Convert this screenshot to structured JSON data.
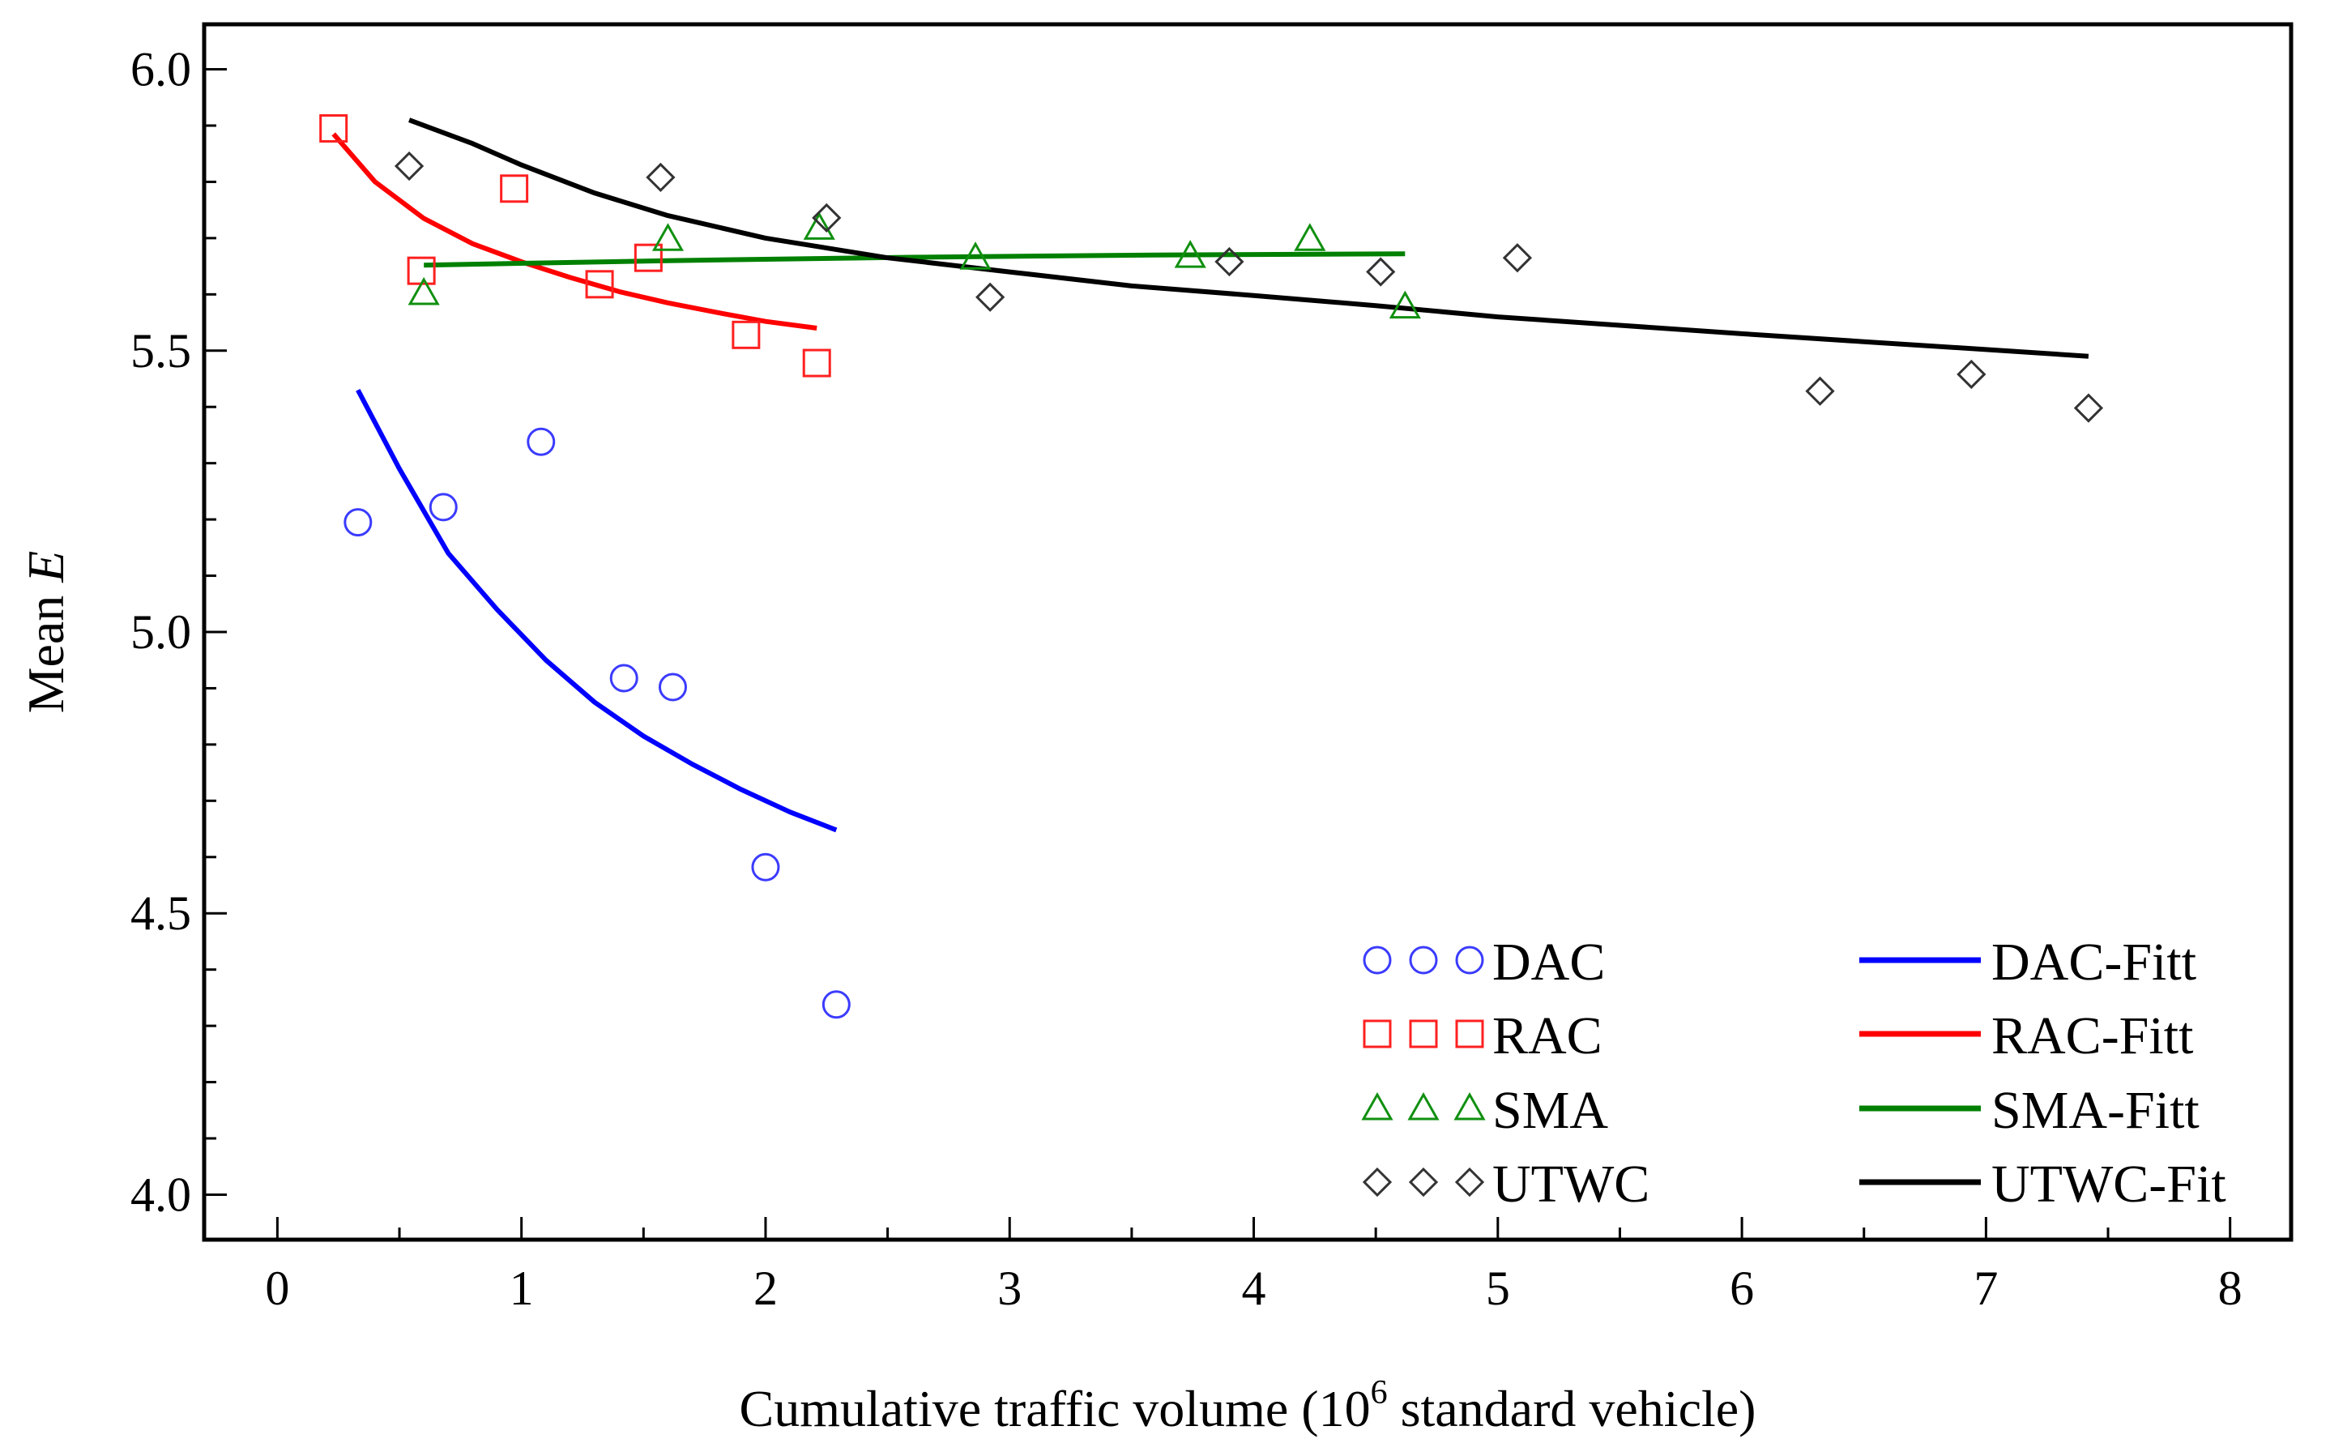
{
  "chart_data": {
    "type": "scatter",
    "xlabel": "Cumulative traffic volume (10",
    "xlabel_sup": "6",
    "xlabel_suffix": " standard vehicle)",
    "ylabel": "Mean ",
    "ylabel_italic": "E",
    "xlim": [
      -0.3,
      8.25
    ],
    "ylim": [
      3.92,
      6.08
    ],
    "x_ticks": [
      0,
      1,
      2,
      3,
      4,
      5,
      6,
      7,
      8
    ],
    "x_tick_labels": [
      "0",
      "1",
      "2",
      "3",
      "4",
      "5",
      "6",
      "7",
      "8"
    ],
    "y_ticks": [
      4.0,
      4.5,
      5.0,
      5.5,
      6.0
    ],
    "y_tick_labels": [
      "4.0",
      "4.5",
      "5.0",
      "5.5",
      "6.0"
    ],
    "legend_position": "bottom-right",
    "series": [
      {
        "name": "DAC",
        "marker": "circle",
        "color": "#3b3bff",
        "points": [
          [
            0.33,
            5.195
          ],
          [
            0.68,
            5.222
          ],
          [
            1.08,
            5.338
          ],
          [
            1.42,
            4.918
          ],
          [
            1.62,
            4.902
          ],
          [
            2.0,
            4.582
          ],
          [
            2.29,
            4.338
          ]
        ]
      },
      {
        "name": "RAC",
        "marker": "square",
        "color": "#ff2020",
        "points": [
          [
            0.23,
            5.895
          ],
          [
            0.59,
            5.642
          ],
          [
            0.97,
            5.788
          ],
          [
            1.32,
            5.618
          ],
          [
            1.52,
            5.665
          ],
          [
            1.92,
            5.528
          ],
          [
            2.21,
            5.478
          ]
        ]
      },
      {
        "name": "SMA",
        "marker": "triangle",
        "color": "#109010",
        "points": [
          [
            0.6,
            5.602
          ],
          [
            1.6,
            5.698
          ],
          [
            2.22,
            5.718
          ],
          [
            2.86,
            5.665
          ],
          [
            3.74,
            5.668
          ],
          [
            4.23,
            5.698
          ],
          [
            4.62,
            5.578
          ]
        ]
      },
      {
        "name": "UTWC",
        "marker": "diamond",
        "color": "#333333",
        "points": [
          [
            0.54,
            5.828
          ],
          [
            1.57,
            5.808
          ],
          [
            2.25,
            5.736
          ],
          [
            2.92,
            5.595
          ],
          [
            3.9,
            5.658
          ],
          [
            4.52,
            5.64
          ],
          [
            5.08,
            5.665
          ],
          [
            6.32,
            5.428
          ],
          [
            6.94,
            5.458
          ],
          [
            7.42,
            5.398
          ]
        ]
      }
    ],
    "fits": [
      {
        "name": "DAC-Fitt",
        "color": "#0000ff",
        "points": [
          [
            0.33,
            5.43
          ],
          [
            0.5,
            5.29
          ],
          [
            0.7,
            5.14
          ],
          [
            0.9,
            5.04
          ],
          [
            1.1,
            4.95
          ],
          [
            1.3,
            4.875
          ],
          [
            1.5,
            4.815
          ],
          [
            1.7,
            4.765
          ],
          [
            1.9,
            4.72
          ],
          [
            2.1,
            4.68
          ],
          [
            2.29,
            4.648
          ]
        ]
      },
      {
        "name": "RAC-Fitt",
        "color": "#ff0000",
        "points": [
          [
            0.23,
            5.885
          ],
          [
            0.4,
            5.8
          ],
          [
            0.6,
            5.735
          ],
          [
            0.8,
            5.69
          ],
          [
            1.0,
            5.658
          ],
          [
            1.2,
            5.63
          ],
          [
            1.4,
            5.605
          ],
          [
            1.6,
            5.585
          ],
          [
            1.8,
            5.568
          ],
          [
            2.0,
            5.552
          ],
          [
            2.21,
            5.54
          ]
        ]
      },
      {
        "name": "SMA-Fitt",
        "color": "#008000",
        "points": [
          [
            0.6,
            5.652
          ],
          [
            1.6,
            5.66
          ],
          [
            2.6,
            5.666
          ],
          [
            3.6,
            5.67
          ],
          [
            4.62,
            5.672
          ]
        ]
      },
      {
        "name": "UTWC-Fit",
        "color": "#000000",
        "points": [
          [
            0.54,
            5.91
          ],
          [
            0.8,
            5.868
          ],
          [
            1.0,
            5.83
          ],
          [
            1.3,
            5.78
          ],
          [
            1.6,
            5.74
          ],
          [
            2.0,
            5.7
          ],
          [
            2.5,
            5.665
          ],
          [
            3.0,
            5.64
          ],
          [
            3.5,
            5.615
          ],
          [
            4.0,
            5.598
          ],
          [
            4.5,
            5.58
          ],
          [
            5.0,
            5.56
          ],
          [
            5.5,
            5.545
          ],
          [
            6.0,
            5.53
          ],
          [
            6.5,
            5.516
          ],
          [
            7.0,
            5.502
          ],
          [
            7.42,
            5.49
          ]
        ]
      }
    ]
  }
}
